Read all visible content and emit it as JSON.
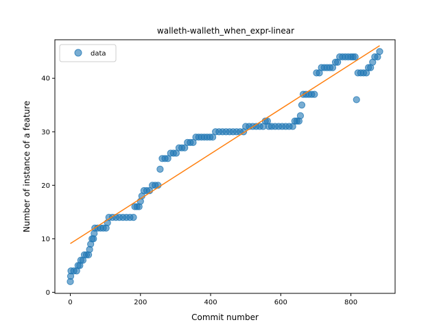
{
  "chart_data": {
    "type": "scatter",
    "title": "walleth-walleth_when_expr-linear",
    "xlabel": "Commit number",
    "ylabel": "Number of instance of a feature",
    "xlim": [
      -44,
      926
    ],
    "ylim": [
      -0.2,
      47.2
    ],
    "xticks": [
      0,
      200,
      400,
      600,
      800
    ],
    "yticks": [
      0,
      10,
      20,
      30,
      40
    ],
    "xtick_labels": [
      "0",
      "200",
      "400",
      "600",
      "800"
    ],
    "ytick_labels": [
      "0",
      "10",
      "20",
      "30",
      "40"
    ],
    "legend": {
      "placement": "upper-left",
      "entries": [
        "data"
      ]
    },
    "colors": {
      "scatter": "#1f77b4",
      "fit": "#ff7f0e"
    },
    "series": [
      {
        "name": "data",
        "kind": "scatter",
        "points": [
          [
            0,
            2
          ],
          [
            1,
            3
          ],
          [
            2,
            4
          ],
          [
            10,
            4
          ],
          [
            18,
            4
          ],
          [
            22,
            5
          ],
          [
            27,
            5
          ],
          [
            30,
            6
          ],
          [
            36,
            6
          ],
          [
            40,
            7
          ],
          [
            46,
            7
          ],
          [
            52,
            7
          ],
          [
            55,
            8
          ],
          [
            58,
            9
          ],
          [
            62,
            10
          ],
          [
            66,
            10
          ],
          [
            68,
            11
          ],
          [
            70,
            12
          ],
          [
            78,
            12
          ],
          [
            86,
            12
          ],
          [
            94,
            12
          ],
          [
            102,
            12
          ],
          [
            106,
            13
          ],
          [
            110,
            14
          ],
          [
            120,
            14
          ],
          [
            130,
            14
          ],
          [
            140,
            14
          ],
          [
            150,
            14
          ],
          [
            160,
            14
          ],
          [
            170,
            14
          ],
          [
            180,
            14
          ],
          [
            184,
            16
          ],
          [
            190,
            16
          ],
          [
            196,
            16
          ],
          [
            200,
            17
          ],
          [
            204,
            18
          ],
          [
            210,
            19
          ],
          [
            218,
            19
          ],
          [
            226,
            19
          ],
          [
            234,
            20
          ],
          [
            242,
            20
          ],
          [
            250,
            20
          ],
          [
            256,
            23
          ],
          [
            262,
            25
          ],
          [
            270,
            25
          ],
          [
            278,
            25
          ],
          [
            286,
            26
          ],
          [
            294,
            26
          ],
          [
            302,
            26
          ],
          [
            310,
            27
          ],
          [
            318,
            27
          ],
          [
            326,
            27
          ],
          [
            334,
            28
          ],
          [
            342,
            28
          ],
          [
            350,
            28
          ],
          [
            358,
            29
          ],
          [
            366,
            29
          ],
          [
            374,
            29
          ],
          [
            382,
            29
          ],
          [
            390,
            29
          ],
          [
            398,
            29
          ],
          [
            406,
            29
          ],
          [
            414,
            30
          ],
          [
            424,
            30
          ],
          [
            434,
            30
          ],
          [
            444,
            30
          ],
          [
            454,
            30
          ],
          [
            464,
            30
          ],
          [
            474,
            30
          ],
          [
            484,
            30
          ],
          [
            494,
            30
          ],
          [
            500,
            31
          ],
          [
            510,
            31
          ],
          [
            520,
            31
          ],
          [
            530,
            31
          ],
          [
            540,
            31
          ],
          [
            550,
            31
          ],
          [
            556,
            32
          ],
          [
            562,
            32
          ],
          [
            566,
            31
          ],
          [
            574,
            31
          ],
          [
            584,
            31
          ],
          [
            594,
            31
          ],
          [
            604,
            31
          ],
          [
            614,
            31
          ],
          [
            624,
            31
          ],
          [
            634,
            31
          ],
          [
            640,
            32
          ],
          [
            646,
            32
          ],
          [
            652,
            32
          ],
          [
            656,
            33
          ],
          [
            660,
            35
          ],
          [
            664,
            37
          ],
          [
            672,
            37
          ],
          [
            680,
            37
          ],
          [
            688,
            37
          ],
          [
            696,
            37
          ],
          [
            702,
            41
          ],
          [
            710,
            41
          ],
          [
            716,
            42
          ],
          [
            724,
            42
          ],
          [
            732,
            42
          ],
          [
            740,
            42
          ],
          [
            748,
            42
          ],
          [
            756,
            43
          ],
          [
            762,
            43
          ],
          [
            768,
            44
          ],
          [
            776,
            44
          ],
          [
            784,
            44
          ],
          [
            792,
            44
          ],
          [
            800,
            44
          ],
          [
            806,
            44
          ],
          [
            812,
            44
          ],
          [
            816,
            36
          ],
          [
            820,
            41
          ],
          [
            828,
            41
          ],
          [
            836,
            41
          ],
          [
            844,
            41
          ],
          [
            850,
            42
          ],
          [
            856,
            42
          ],
          [
            862,
            43
          ],
          [
            868,
            44
          ],
          [
            876,
            44
          ],
          [
            882,
            45
          ]
        ]
      },
      {
        "name": "",
        "kind": "line",
        "points": [
          [
            0,
            9.1
          ],
          [
            882,
            46.1
          ]
        ]
      }
    ]
  }
}
